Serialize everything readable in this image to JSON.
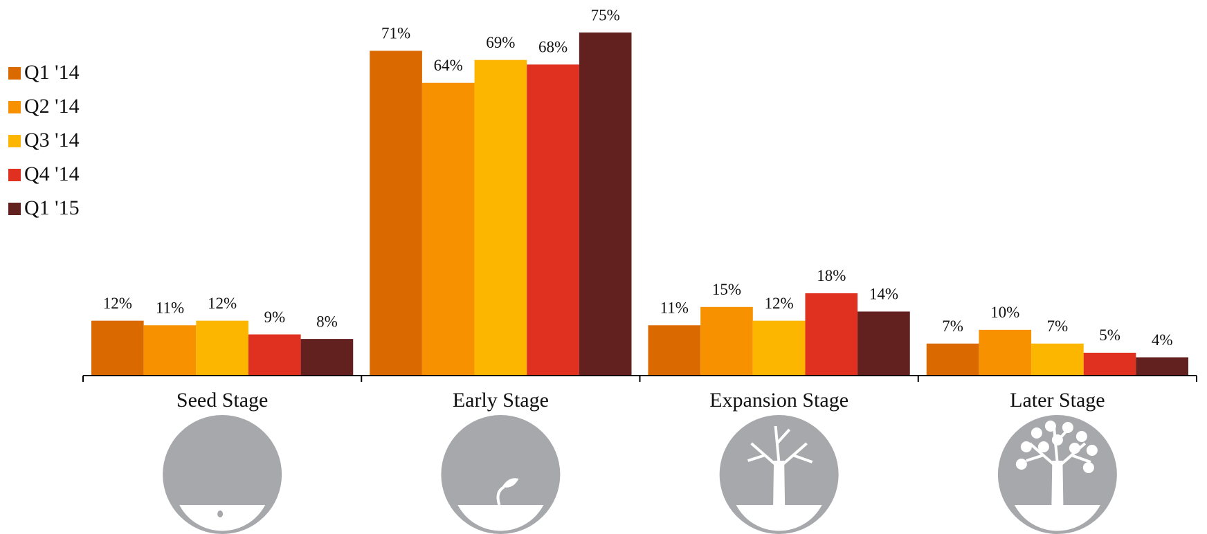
{
  "chart_data": {
    "type": "bar",
    "categories": [
      "Seed Stage",
      "Early Stage",
      "Expansion Stage",
      "Later Stage"
    ],
    "series": [
      {
        "name": "Q1 '14",
        "color": "#da6a00",
        "values": [
          12,
          71,
          11,
          7
        ],
        "value_labels": [
          "12%",
          "71%",
          "11%",
          "7%"
        ]
      },
      {
        "name": "Q2 '14",
        "color": "#f79100",
        "values": [
          11,
          64,
          15,
          10
        ],
        "value_labels": [
          "11%",
          "64%",
          "15%",
          "10%"
        ]
      },
      {
        "name": "Q3 '14",
        "color": "#fdb600",
        "values": [
          12,
          69,
          12,
          7
        ],
        "value_labels": [
          "12%",
          "69%",
          "12%",
          "7%"
        ]
      },
      {
        "name": "Q4 '14",
        "color": "#e03120",
        "values": [
          9,
          68,
          18,
          5
        ],
        "value_labels": [
          "9%",
          "68%",
          "18%",
          "5%"
        ]
      },
      {
        "name": "Q1 '15",
        "color": "#62201f",
        "values": [
          8,
          75,
          14,
          4
        ],
        "value_labels": [
          "8%",
          "75%",
          "14%",
          "4%"
        ]
      }
    ]
  }
}
